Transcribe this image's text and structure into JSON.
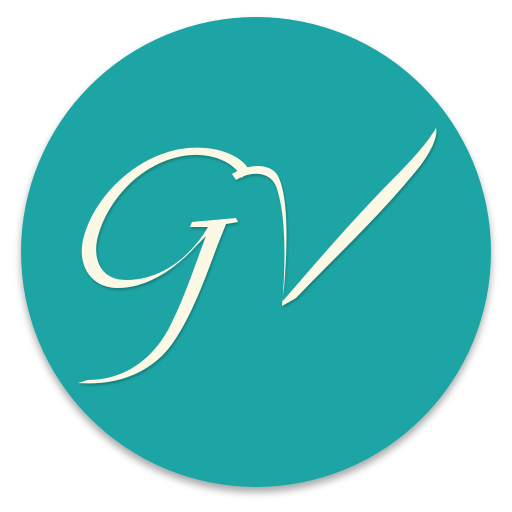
{
  "logo": {
    "monogram": "GV",
    "colors": {
      "circle": "#1FA5A4",
      "letters": "#FBF9E6"
    }
  }
}
